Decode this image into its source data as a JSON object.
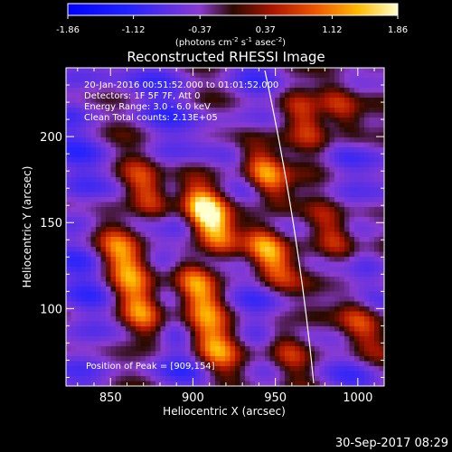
{
  "chart_data": {
    "type": "heatmap",
    "title": "Reconstructed RHESSI Image",
    "xlabel": "Heliocentric X (arcsec)",
    "ylabel": "Heliocentric Y (arcsec)",
    "xlim": [
      823,
      1016
    ],
    "ylim": [
      55,
      240
    ],
    "xticks": [
      850,
      900,
      950,
      1000
    ],
    "yticks": [
      100,
      150,
      200
    ],
    "colorbar": {
      "min": -1.86,
      "max": 1.86,
      "ticks": [
        "-1.86",
        "-1.12",
        "-0.37",
        "0.37",
        "1.12",
        "1.86"
      ],
      "unit_label": "(photons cm",
      "unit_sup1": "-2",
      "unit_mid1": " s",
      "unit_sup2": "-1",
      "unit_mid2": " asec",
      "unit_sup3": "-2",
      "unit_end": ")"
    },
    "info_lines": [
      "20-Jan-2016 00:51:52.000 to 01:01:52.000",
      "Detectors: 1F 5F 7F, Att 0",
      "Energy Range: 3.0 - 6.0 keV",
      "Clean    Total counts: 2.13E+05"
    ],
    "peak_text": "Position of Peak = [909,154]",
    "sources": [
      {
        "x": 909,
        "y": 154,
        "value": 1.86
      },
      {
        "x": 944,
        "y": 178,
        "value": 1.5
      },
      {
        "x": 946,
        "y": 132,
        "value": 1.45
      },
      {
        "x": 903,
        "y": 112,
        "value": 1.3
      },
      {
        "x": 868,
        "y": 98,
        "value": 1.1
      },
      {
        "x": 872,
        "y": 168,
        "value": 1.0
      },
      {
        "x": 857,
        "y": 130,
        "value": 0.9
      },
      {
        "x": 913,
        "y": 78,
        "value": 0.9
      },
      {
        "x": 985,
        "y": 142,
        "value": 0.85
      },
      {
        "x": 990,
        "y": 215,
        "value": 0.75
      },
      {
        "x": 1002,
        "y": 90,
        "value": 0.8
      },
      {
        "x": 958,
        "y": 75,
        "value": 0.7
      },
      {
        "x": 968,
        "y": 210,
        "value": 0.7
      }
    ]
  },
  "timestamp": "30-Sep-2017 08:29",
  "colors": {
    "background": "#000000",
    "limb": "#ffffff"
  }
}
